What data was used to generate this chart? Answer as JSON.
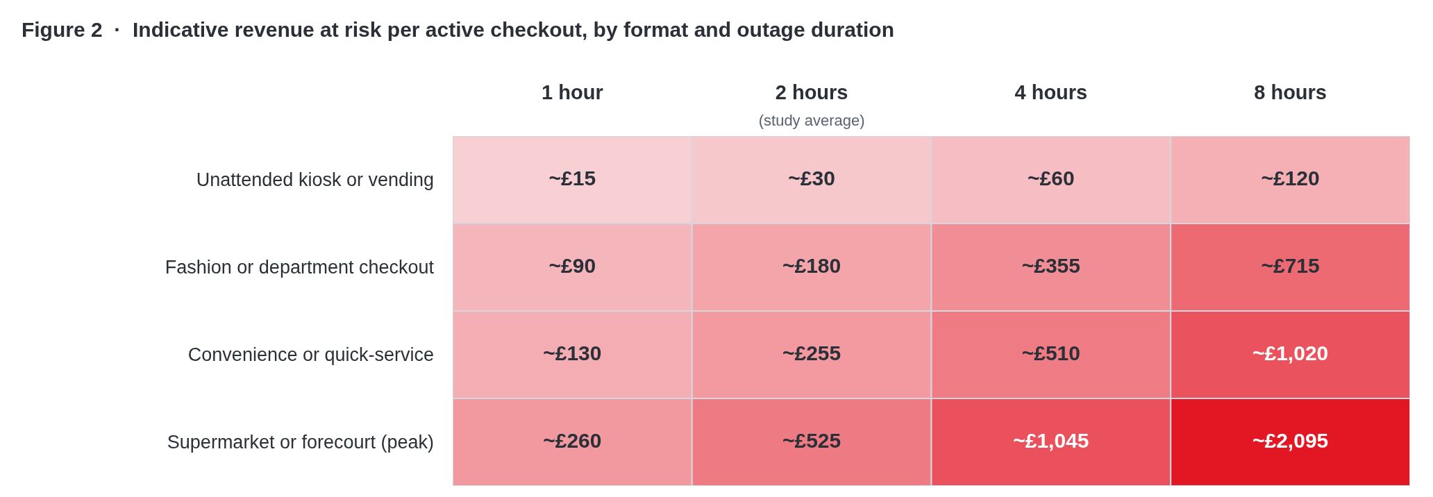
{
  "chart_data": {
    "type": "heatmap",
    "title": "Figure 2  ·  Indicative revenue at risk per active checkout, by format and outage duration",
    "categories": [
      "1 hour",
      "2 hours\n(study average)",
      "4 hours",
      "8 hours"
    ],
    "y_categories": [
      "Unattended kiosk or vending",
      "Fashion or department checkout",
      "Convenience or quick-service",
      "Supermarket or forecourt (peak)"
    ],
    "cells": [
      [
        15,
        30,
        60,
        120
      ],
      [
        90,
        180,
        355,
        715
      ],
      [
        130,
        255,
        510,
        1020
      ],
      [
        260,
        525,
        1045,
        2095
      ]
    ],
    "cell_labels": [
      [
        "~£15",
        "~£30",
        "~£60",
        "~£120"
      ],
      [
        "~£90",
        "~£180",
        "~£355",
        "~£715"
      ],
      [
        "~£130",
        "~£255",
        "~£510",
        "~£1,020"
      ],
      [
        "~£260",
        "~£525",
        "~£1,045",
        "~£2,095"
      ]
    ]
  }
}
